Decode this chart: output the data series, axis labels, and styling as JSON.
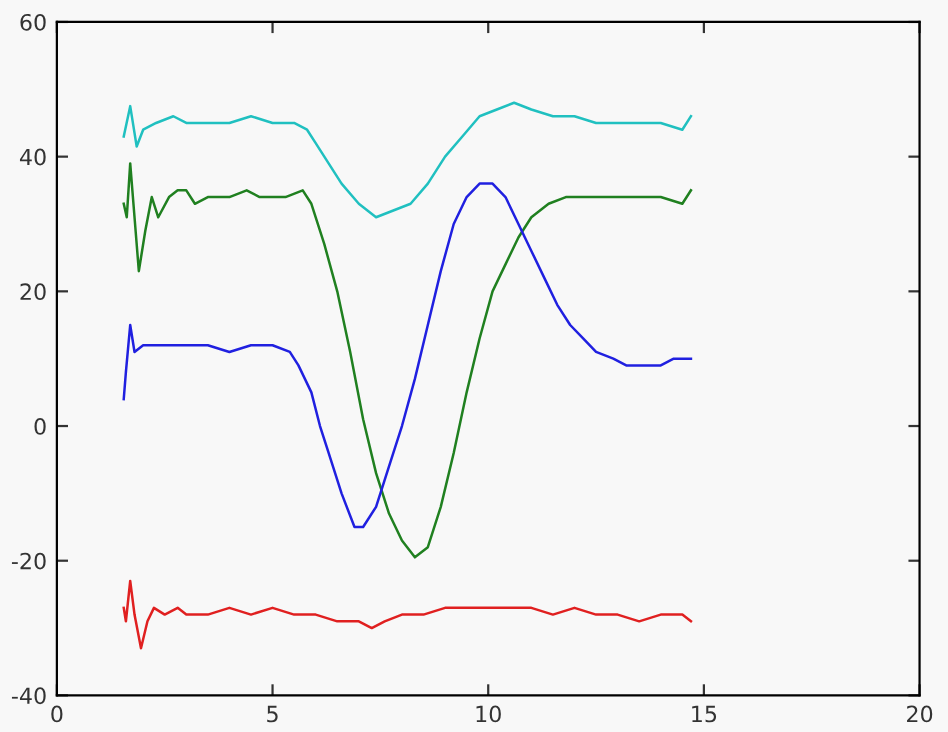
{
  "chart_data": {
    "type": "line",
    "xlim": [
      0,
      20
    ],
    "xticks": [
      0,
      5,
      10,
      15,
      20
    ],
    "ylim": [
      -40,
      60
    ],
    "yticks": [
      -40,
      -20,
      0,
      20,
      40,
      60
    ],
    "grid": false,
    "marker": "none",
    "line_style": "solid",
    "series": [
      {
        "color": "#20c0c0",
        "x": [
          1.55,
          1.7,
          1.85,
          2.0,
          2.3,
          2.7,
          3.0,
          3.5,
          4.0,
          4.5,
          5.0,
          5.5,
          5.8,
          6.0,
          6.3,
          6.6,
          7.0,
          7.4,
          7.8,
          8.2,
          8.6,
          9.0,
          9.4,
          9.8,
          10.2,
          10.6,
          11.0,
          11.5,
          12.0,
          12.5,
          13.0,
          13.5,
          14.0,
          14.5,
          14.7
        ],
        "values": [
          43,
          47.5,
          41.5,
          44,
          45,
          46,
          45,
          45,
          45,
          46,
          45,
          45,
          44,
          42,
          39,
          36,
          33,
          31,
          32,
          33,
          36,
          40,
          43,
          46,
          47,
          48,
          47,
          46,
          46,
          45,
          45,
          45,
          45,
          44,
          46
        ]
      },
      {
        "color": "#208020",
        "x": [
          1.55,
          1.62,
          1.7,
          1.8,
          1.9,
          2.05,
          2.2,
          2.35,
          2.6,
          2.8,
          3.0,
          3.2,
          3.5,
          4.0,
          4.4,
          4.7,
          5.0,
          5.3,
          5.7,
          5.9,
          6.2,
          6.5,
          6.8,
          7.1,
          7.4,
          7.7,
          8.0,
          8.3,
          8.6,
          8.9,
          9.2,
          9.5,
          9.8,
          10.1,
          10.4,
          10.7,
          11.0,
          11.4,
          11.8,
          12.5,
          13.0,
          13.5,
          14.0,
          14.5,
          14.7
        ],
        "values": [
          33,
          31,
          39,
          31,
          23,
          29,
          34,
          31,
          34,
          35,
          35,
          33,
          34,
          34,
          35,
          34,
          34,
          34,
          35,
          33,
          27,
          20,
          11,
          1,
          -7,
          -13,
          -17,
          -19.5,
          -18,
          -12,
          -4,
          5,
          13,
          20,
          24,
          28,
          31,
          33,
          34,
          34,
          34,
          34,
          34,
          33,
          35
        ]
      },
      {
        "color": "#2020e0",
        "x": [
          1.55,
          1.6,
          1.7,
          1.8,
          2.0,
          2.5,
          3.0,
          3.5,
          4.0,
          4.5,
          5.0,
          5.4,
          5.6,
          5.9,
          6.1,
          6.3,
          6.6,
          6.9,
          7.1,
          7.4,
          7.7,
          8.0,
          8.3,
          8.6,
          8.9,
          9.2,
          9.5,
          9.8,
          10.1,
          10.4,
          10.7,
          11.0,
          11.3,
          11.6,
          11.9,
          12.2,
          12.5,
          12.9,
          13.2,
          13.6,
          14.0,
          14.3,
          14.7
        ],
        "values": [
          4,
          8,
          15,
          11,
          12,
          12,
          12,
          12,
          11,
          12,
          12,
          11,
          9,
          5,
          0,
          -4,
          -10,
          -15,
          -15,
          -12,
          -6,
          0,
          7,
          15,
          23,
          30,
          34,
          36,
          36,
          34,
          30,
          26,
          22,
          18,
          15,
          13,
          11,
          10,
          9,
          9,
          9,
          10,
          10
        ]
      },
      {
        "color": "#e02020",
        "x": [
          1.55,
          1.6,
          1.7,
          1.8,
          1.95,
          2.1,
          2.25,
          2.5,
          2.8,
          3.0,
          3.5,
          4.0,
          4.5,
          5.0,
          5.5,
          6.0,
          6.5,
          7.0,
          7.3,
          7.6,
          8.0,
          8.5,
          9.0,
          9.5,
          10.0,
          10.5,
          11.0,
          11.5,
          12.0,
          12.5,
          13.0,
          13.5,
          14.0,
          14.5,
          14.7
        ],
        "values": [
          -27,
          -29,
          -23,
          -28,
          -33,
          -29,
          -27,
          -28,
          -27,
          -28,
          -28,
          -27,
          -28,
          -27,
          -28,
          -28,
          -29,
          -29,
          -30,
          -29,
          -28,
          -28,
          -27,
          -27,
          -27,
          -27,
          -27,
          -28,
          -27,
          -28,
          -28,
          -29,
          -28,
          -28,
          -29
        ]
      }
    ]
  }
}
